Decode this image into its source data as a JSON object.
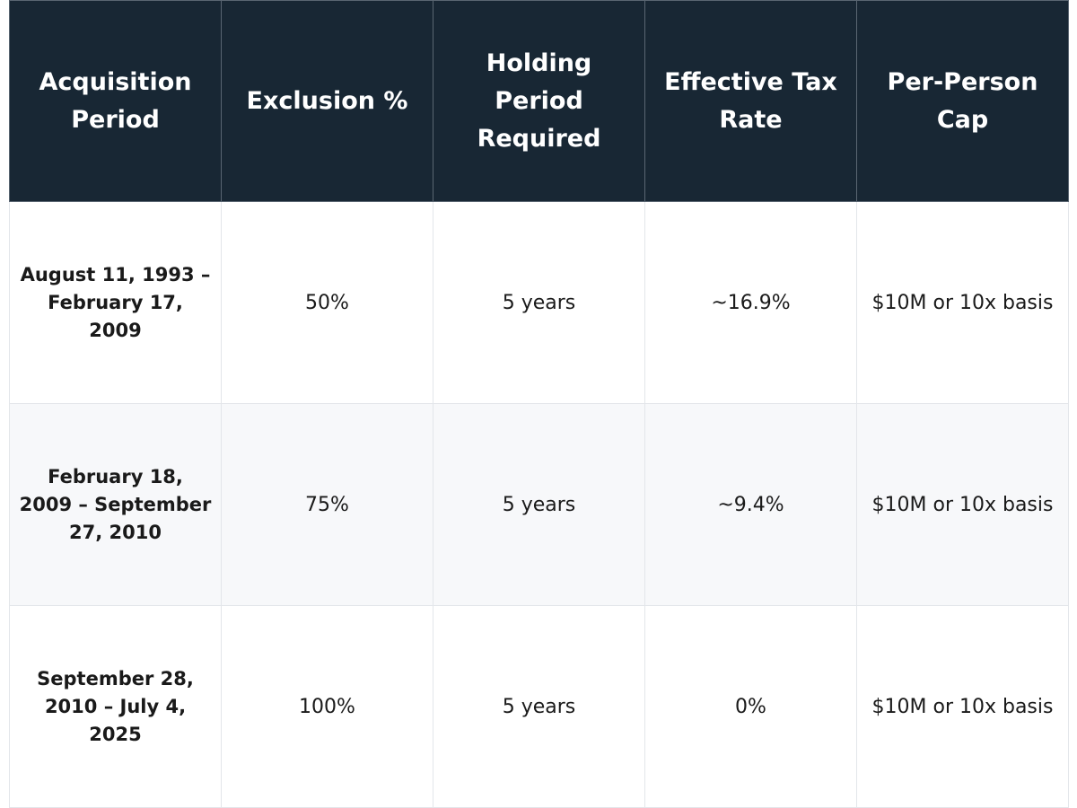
{
  "headers": [
    "Acquisition Period",
    "Exclusion %",
    "Holding Period Required",
    "Effective Tax Rate",
    "Per-Person Cap"
  ],
  "rows": [
    {
      "period": "August 11, 1993 – February 17, 2009",
      "exclusion": "50%",
      "holding": "5 years",
      "rate": "~16.9%",
      "cap": "$10M or 10x basis"
    },
    {
      "period": "February 18, 2009 – September 27, 2010",
      "exclusion": "75%",
      "holding": "5 years",
      "rate": "~9.4%",
      "cap": "$10M or 10x basis"
    },
    {
      "period": "September 28, 2010 – July 4, 2025",
      "exclusion": "100%",
      "holding": "5 years",
      "rate": "0%",
      "cap": "$10M or 10x basis"
    }
  ],
  "colors": {
    "header_bg": "#182734",
    "header_text": "#ffffff",
    "alt_row_bg": "#f7f8fa",
    "grid_line": "#e3e6ea"
  }
}
